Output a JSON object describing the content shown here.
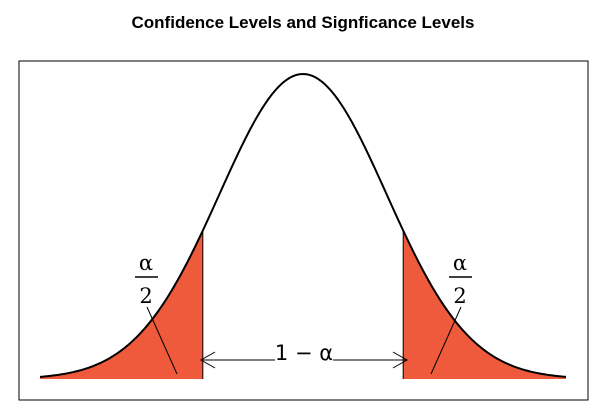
{
  "figure": {
    "title": "Confidence Levels and Signficance Levels",
    "left_tail_label": {
      "numerator": "α",
      "denominator": "2"
    },
    "right_tail_label": {
      "numerator": "α",
      "denominator": "2"
    },
    "center_label": "1 − α",
    "colors": {
      "tail_fill": "#f05a3c",
      "curve": "#000000",
      "frame": "#000000"
    }
  },
  "chart_data": {
    "type": "area",
    "title": "Confidence Levels and Signficance Levels",
    "distribution": "normal",
    "mean": 0,
    "sd": 1,
    "xlim": [
      -3.15,
      3.15
    ],
    "critical_values": [
      -1.2,
      1.2
    ],
    "shaded_regions": [
      "left tail",
      "right tail"
    ],
    "annotations": [
      "α/2",
      "α/2",
      "1 − α"
    ]
  }
}
